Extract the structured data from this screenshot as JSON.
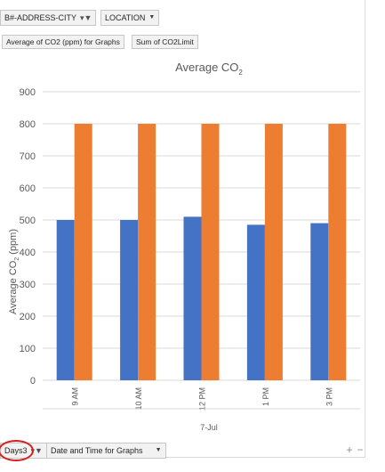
{
  "filters": {
    "address_city": {
      "label": "B#-ADDRESS-CITY"
    },
    "location": {
      "label": "LOCATION"
    }
  },
  "values": {
    "avg_co2": "Average of CO2 (ppm) for Graphs",
    "sum_limit": "Sum of CO2Limit"
  },
  "axis_fields": {
    "days": {
      "label": "Days3"
    },
    "datetime": {
      "label": "Date and Time for Graphs"
    }
  },
  "controls": {
    "expand": "+",
    "collapse": "−"
  },
  "colors": {
    "avg_co2": "#4472c4",
    "co2_limit": "#ed7d31",
    "gridline": "#d9d9d9",
    "axis_text": "#595959",
    "highlight": "#d21f1f"
  },
  "chart_data": {
    "type": "bar",
    "title": "Average CO",
    "title_subscript": "2",
    "ylabel": "Average CO",
    "ylabel_subscript": "2",
    "ylabel_suffix": " (ppm)",
    "categories": [
      "9 AM",
      "10 AM",
      "12 PM",
      "1 PM",
      "3 PM"
    ],
    "group_label": "7-Jul",
    "series": [
      {
        "values": [
          500,
          500,
          510,
          485,
          490
        ]
      },
      {
        "values": [
          800,
          800,
          800,
          800,
          800
        ]
      }
    ],
    "ylim": [
      0,
      900
    ],
    "yticks": [
      0,
      100,
      200,
      300,
      400,
      500,
      600,
      700,
      800,
      900
    ],
    "grid": true
  }
}
